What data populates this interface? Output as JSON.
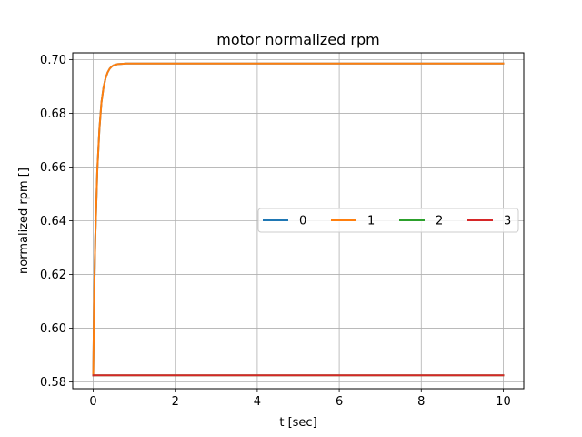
{
  "chart_data": {
    "type": "line",
    "title": "motor normalized rpm",
    "xlabel": "t [sec]",
    "ylabel": "normalized rpm []",
    "xlim": [
      -0.5,
      10.5
    ],
    "ylim": [
      0.5775,
      0.7025
    ],
    "xticks": [
      0,
      2,
      4,
      6,
      8,
      10
    ],
    "xtick_labels": [
      "0",
      "2",
      "4",
      "6",
      "8",
      "10"
    ],
    "yticks": [
      0.58,
      0.6,
      0.62,
      0.64,
      0.66,
      0.68,
      0.7
    ],
    "ytick_labels": [
      "0.58",
      "0.60",
      "0.62",
      "0.64",
      "0.66",
      "0.68",
      "0.70"
    ],
    "grid": true,
    "legend": {
      "placement": "center-right",
      "columns": 4
    },
    "series": [
      {
        "name": "0",
        "color": "#1f77b4",
        "x": [
          0,
          0.02,
          0.05,
          0.1,
          0.15,
          0.2,
          0.25,
          0.3,
          0.35,
          0.4,
          0.45,
          0.5,
          0.6,
          0.7,
          0.8,
          1.0,
          10
        ],
        "y": [
          0.5825,
          0.609,
          0.6335,
          0.659,
          0.674,
          0.684,
          0.6895,
          0.693,
          0.6952,
          0.6966,
          0.6974,
          0.6979,
          0.6983,
          0.6984,
          0.6985,
          0.6985,
          0.6985
        ]
      },
      {
        "name": "1",
        "color": "#ff7f0e",
        "x": [
          0,
          0.02,
          0.05,
          0.1,
          0.15,
          0.2,
          0.25,
          0.3,
          0.35,
          0.4,
          0.45,
          0.5,
          0.6,
          0.7,
          0.8,
          1.0,
          10
        ],
        "y": [
          0.5825,
          0.609,
          0.6335,
          0.659,
          0.674,
          0.684,
          0.6895,
          0.693,
          0.6952,
          0.6966,
          0.6974,
          0.6979,
          0.6983,
          0.6984,
          0.6985,
          0.6985,
          0.6985
        ]
      },
      {
        "name": "2",
        "color": "#2ca02c",
        "x": [
          0,
          10
        ],
        "y": [
          0.5825,
          0.5825
        ]
      },
      {
        "name": "3",
        "color": "#d62728",
        "x": [
          0,
          10
        ],
        "y": [
          0.5825,
          0.5825
        ]
      }
    ]
  }
}
